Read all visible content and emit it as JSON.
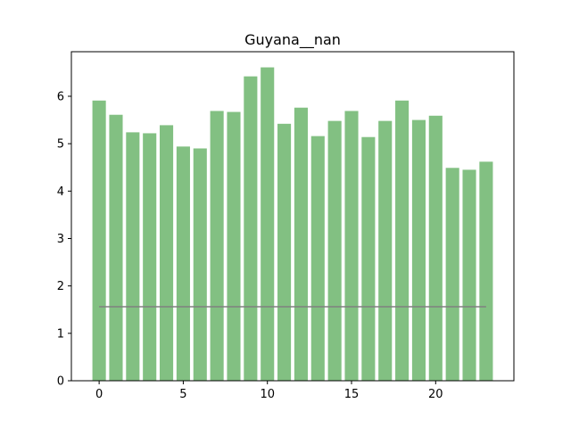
{
  "chart_data": {
    "type": "bar",
    "title": "Guyana__nan",
    "xlabel": "",
    "ylabel": "",
    "x": [
      0,
      1,
      2,
      3,
      4,
      5,
      6,
      7,
      8,
      9,
      10,
      11,
      12,
      13,
      14,
      15,
      16,
      17,
      18,
      19,
      20,
      21,
      22,
      23
    ],
    "values": [
      5.91,
      5.61,
      5.24,
      5.22,
      5.39,
      4.94,
      4.9,
      5.69,
      5.67,
      6.42,
      6.61,
      5.42,
      5.76,
      5.16,
      5.48,
      5.69,
      5.14,
      5.48,
      5.91,
      5.5,
      5.59,
      4.49,
      4.45,
      4.62
    ],
    "reference_line": {
      "y": 1.56,
      "x_range": [
        0,
        23
      ],
      "color": "#808080"
    },
    "xlim": [
      -1.65,
      24.65
    ],
    "ylim": [
      0,
      6.94
    ],
    "xticks": [
      0,
      5,
      10,
      15,
      20
    ],
    "yticks": [
      0,
      1,
      2,
      3,
      4,
      5,
      6
    ],
    "bar_color": "#82c082",
    "grid": false,
    "legend": "none"
  }
}
